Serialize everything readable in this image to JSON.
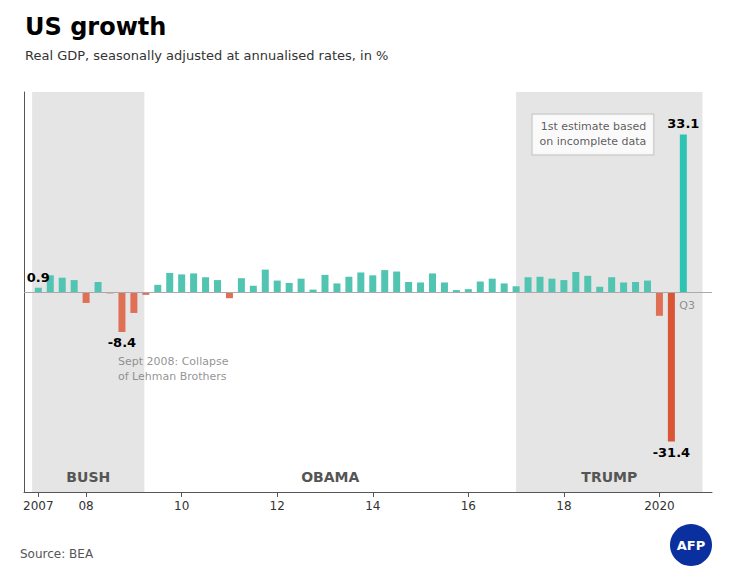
{
  "chart_data": {
    "type": "bar",
    "title": "US growth",
    "subtitle": "Real GDP, seasonally adjusted at annualised rates, in %",
    "source": "Source: BEA",
    "x": [
      2007.0,
      2007.25,
      2007.5,
      2007.75,
      2008.0,
      2008.25,
      2008.5,
      2008.75,
      2009.0,
      2009.25,
      2009.5,
      2009.75,
      2010.0,
      2010.25,
      2010.5,
      2010.75,
      2011.0,
      2011.25,
      2011.5,
      2011.75,
      2012.0,
      2012.25,
      2012.5,
      2012.75,
      2013.0,
      2013.25,
      2013.5,
      2013.75,
      2014.0,
      2014.25,
      2014.5,
      2014.75,
      2015.0,
      2015.25,
      2015.5,
      2015.75,
      2016.0,
      2016.25,
      2016.5,
      2016.75,
      2017.0,
      2017.25,
      2017.5,
      2017.75,
      2018.0,
      2018.25,
      2018.5,
      2018.75,
      2019.0,
      2019.25,
      2019.5,
      2019.75,
      2020.0,
      2020.25,
      2020.5
    ],
    "values": [
      0.9,
      3.5,
      3.0,
      2.5,
      -2.3,
      2.1,
      -0.3,
      -8.4,
      -4.4,
      -0.6,
      1.5,
      4.0,
      3.7,
      3.9,
      3.1,
      2.5,
      -1.3,
      2.9,
      1.3,
      4.7,
      2.4,
      1.9,
      2.8,
      0.5,
      3.6,
      1.8,
      3.2,
      4.1,
      3.5,
      4.6,
      4.3,
      2.1,
      2.0,
      3.9,
      2.0,
      0.4,
      0.6,
      2.2,
      2.8,
      1.8,
      1.2,
      3.1,
      3.2,
      2.8,
      2.5,
      4.2,
      3.4,
      1.1,
      3.1,
      2.0,
      2.1,
      2.4,
      -5.0,
      -31.4,
      33.1
    ],
    "colors": [
      "#52c4b2",
      "#52c4b2",
      "#52c4b2",
      "#52c4b2",
      "#e07055",
      "#52c4b2",
      "#e07055",
      "#e07055",
      "#e07055",
      "#e07055",
      "#52c4b2",
      "#52c4b2",
      "#52c4b2",
      "#52c4b2",
      "#52c4b2",
      "#52c4b2",
      "#e07055",
      "#52c4b2",
      "#52c4b2",
      "#52c4b2",
      "#52c4b2",
      "#52c4b2",
      "#52c4b2",
      "#52c4b2",
      "#52c4b2",
      "#52c4b2",
      "#52c4b2",
      "#52c4b2",
      "#52c4b2",
      "#52c4b2",
      "#52c4b2",
      "#52c4b2",
      "#52c4b2",
      "#52c4b2",
      "#52c4b2",
      "#52c4b2",
      "#52c4b2",
      "#52c4b2",
      "#52c4b2",
      "#52c4b2",
      "#52c4b2",
      "#52c4b2",
      "#52c4b2",
      "#52c4b2",
      "#52c4b2",
      "#52c4b2",
      "#52c4b2",
      "#52c4b2",
      "#52c4b2",
      "#52c4b2",
      "#52c4b2",
      "#52c4b2",
      "#e07055",
      "#d95535",
      "#2ec4b2"
    ],
    "xlim": [
      2006.7,
      2021.1
    ],
    "xticks": [
      2007,
      {
        "value": 2008,
        "label": "08"
      },
      {
        "value": 2010,
        "label": "10"
      },
      {
        "value": 2012,
        "label": "12"
      },
      {
        "value": 2014,
        "label": "14"
      },
      {
        "value": 2016,
        "label": "16"
      },
      {
        "value": 2018,
        "label": "18"
      },
      2020
    ],
    "ylim": [
      -42,
      42
    ],
    "tick_labels": "x",
    "grid": false,
    "eras": [
      {
        "label": "BUSH",
        "start": 2006.87,
        "end": 2009.22,
        "color": "#e5e5e5"
      },
      {
        "label": "OBAMA",
        "start": 2009.22,
        "end": 2017.0
      },
      {
        "label": "TRUMP",
        "start": 2017.0,
        "end": 2020.9,
        "color": "#e5e5e5"
      }
    ],
    "annotations": [
      {
        "x": 2007.0,
        "text": "0.9"
      },
      {
        "x": 2008.75,
        "text": "-8.4"
      },
      {
        "x": 2020.25,
        "text": "-31.4"
      },
      {
        "x": 2020.5,
        "text": "33.1"
      }
    ],
    "notes": [
      {
        "x": 2008.75,
        "text": "Sept 2008: Collapse\nof Lehman Brothers"
      },
      {
        "x": 2020.5,
        "text": "Q3"
      }
    ],
    "callout": {
      "x": 2020.5,
      "text": "1st estimate based\non incomplete data"
    },
    "badge": {
      "text": "AFP",
      "color": "#0a2f9e"
    }
  }
}
